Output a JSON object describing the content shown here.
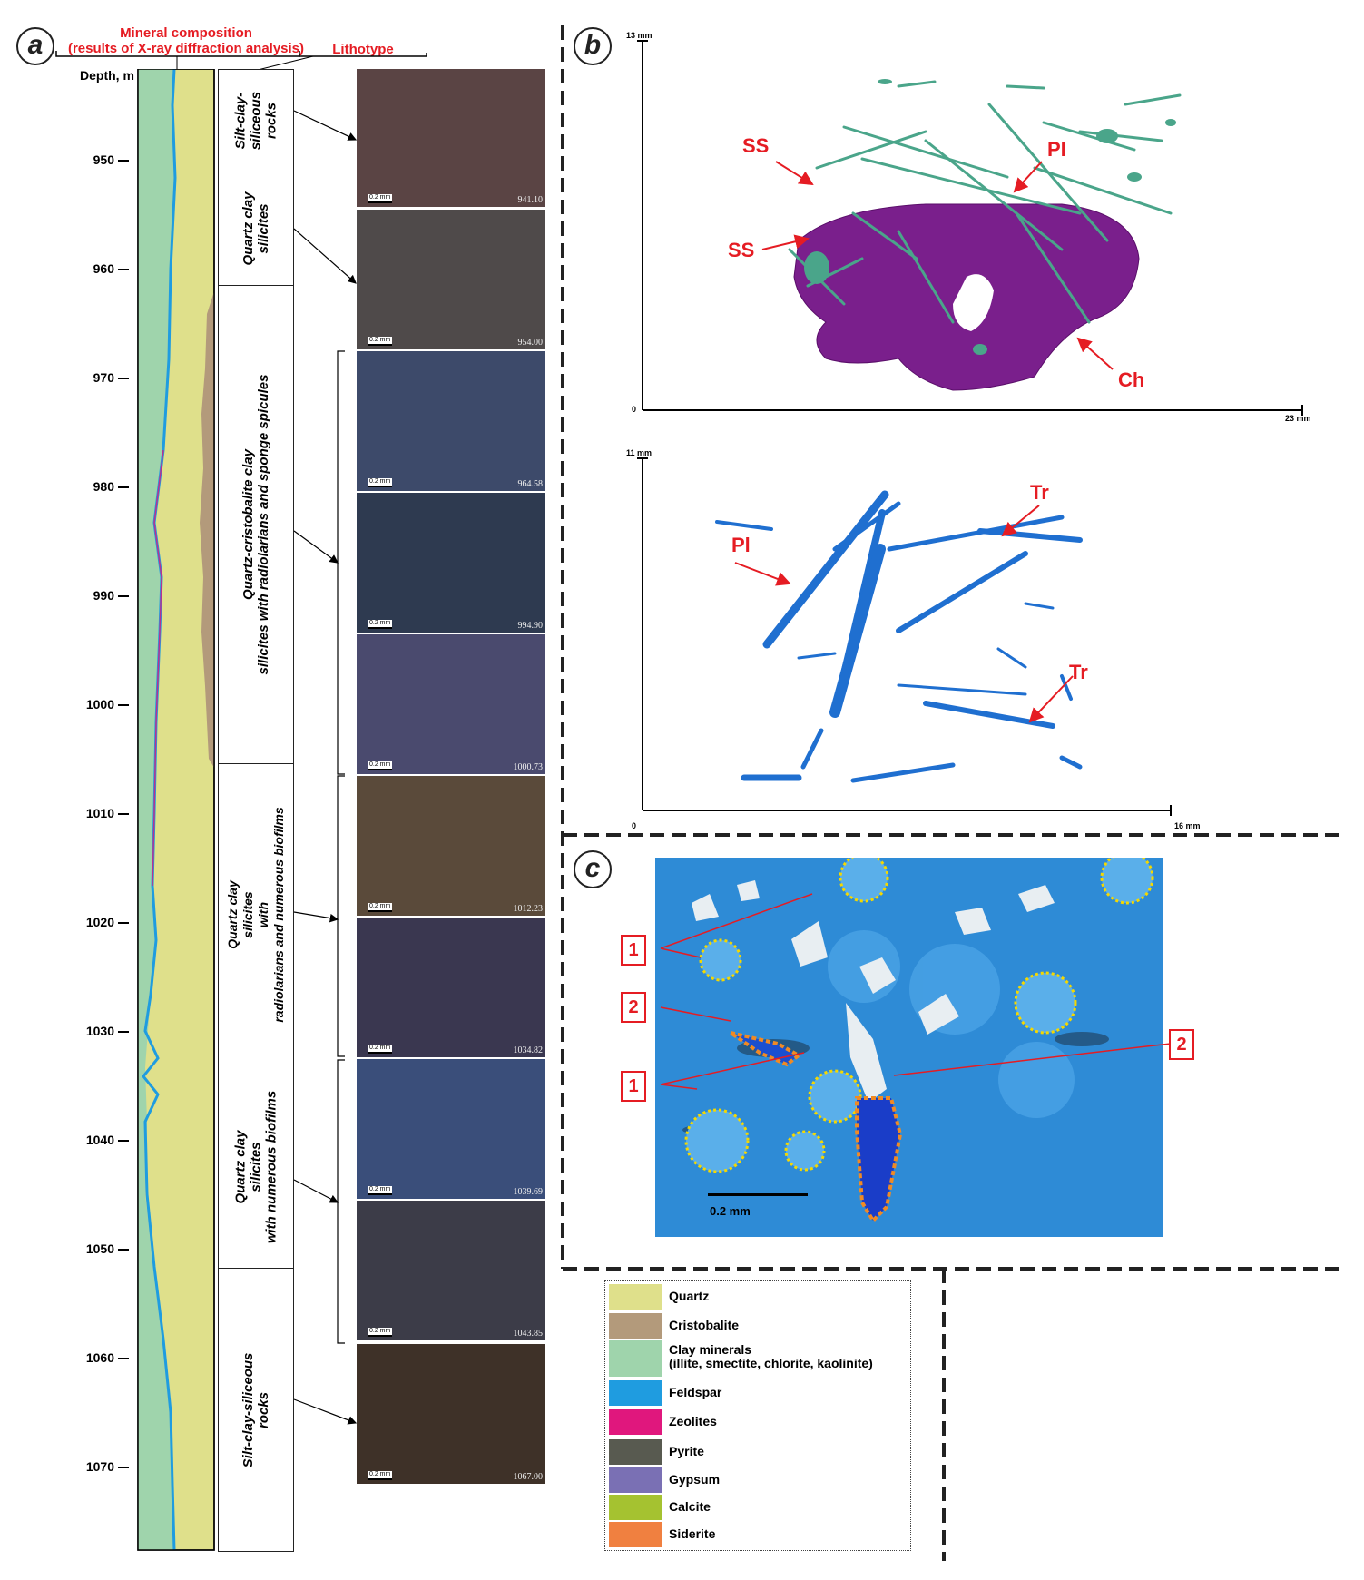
{
  "panel_a": {
    "letter": "a",
    "mineral_header_line1": "Mineral composition",
    "mineral_header_line2": "(results of X-ray diffraction analysis)",
    "lithotype_header": "Lithotype",
    "depth_header": "Depth, m",
    "depth_ticks": [
      "950",
      "960",
      "970",
      "980",
      "990",
      "1000",
      "1010",
      "1020",
      "1030",
      "1040",
      "1050",
      "1060",
      "1070"
    ],
    "lithotypes": [
      {
        "label": "Silt-clay-\nsiliceous\nrocks"
      },
      {
        "label": "Quartz clay\nsilicites"
      },
      {
        "label": "Quartz-cristobalite clay\nsilicites with radiolarians and sponge spicules"
      },
      {
        "label": "Quartz clay\nsilicites\nwith\nradiolarians and numerous biofilms"
      },
      {
        "label": "Quartz clay\nsilicites\nwith numerous biofilms"
      },
      {
        "label": "Silt-clay-siliceous\nrocks"
      }
    ],
    "photos": [
      {
        "depth": "941.10",
        "scale": "0.2 mm",
        "color": "#5a4444"
      },
      {
        "depth": "954.00",
        "scale": "0.2 mm",
        "color": "#4f4a4a"
      },
      {
        "depth": "964.58",
        "scale": "0.2 mm",
        "color": "#3d4a6a"
      },
      {
        "depth": "994.90",
        "scale": "0.2 mm",
        "color": "#2e3a50"
      },
      {
        "depth": "1000.73",
        "scale": "0.2 mm",
        "color": "#4a4a6e"
      },
      {
        "depth": "1012.23",
        "scale": "0.2 mm",
        "color": "#5a4a3a"
      },
      {
        "depth": "1034.82",
        "scale": "0.2 mm",
        "color": "#3a3750"
      },
      {
        "depth": "1039.69",
        "scale": "0.2 mm",
        "color": "#3a4e7a"
      },
      {
        "depth": "1043.85",
        "scale": "0.2 mm",
        "color": "#3c3c48"
      },
      {
        "depth": "1067.00",
        "scale": "0.2 mm",
        "color": "#3e3128"
      }
    ]
  },
  "panel_b": {
    "letter": "b",
    "top_plot": {
      "y_max": "13 mm",
      "origin": "0",
      "x_max": "23 mm",
      "labels": [
        "SS",
        "SS",
        "Pl",
        "Ch"
      ]
    },
    "bottom_plot": {
      "y_max": "11 mm",
      "origin": "0",
      "x_max": "16 mm",
      "labels": [
        "Pl",
        "Tr",
        "Tr"
      ]
    }
  },
  "panel_c": {
    "letter": "c",
    "scale": "0.2 mm",
    "markers": [
      "1",
      "2",
      "1",
      "2"
    ]
  },
  "legend": [
    {
      "label": "Quartz",
      "color": "#dfe08b"
    },
    {
      "label": "Cristobalite",
      "color": "#b39a7b"
    },
    {
      "label": "Clay minerals\n(illite, smectite, chlorite, kaolinite)",
      "color": "#9fd4ac"
    },
    {
      "label": "Feldspar",
      "color": "#1f9ce0"
    },
    {
      "label": "Zeolites",
      "color": "#e0177d"
    },
    {
      "label": "Pyrite",
      "color": "#585a50"
    },
    {
      "label": "Gypsum",
      "color": "#7a70b4"
    },
    {
      "label": "Calcite",
      "color": "#a5c230"
    },
    {
      "label": "Siderite",
      "color": "#f08040"
    }
  ]
}
